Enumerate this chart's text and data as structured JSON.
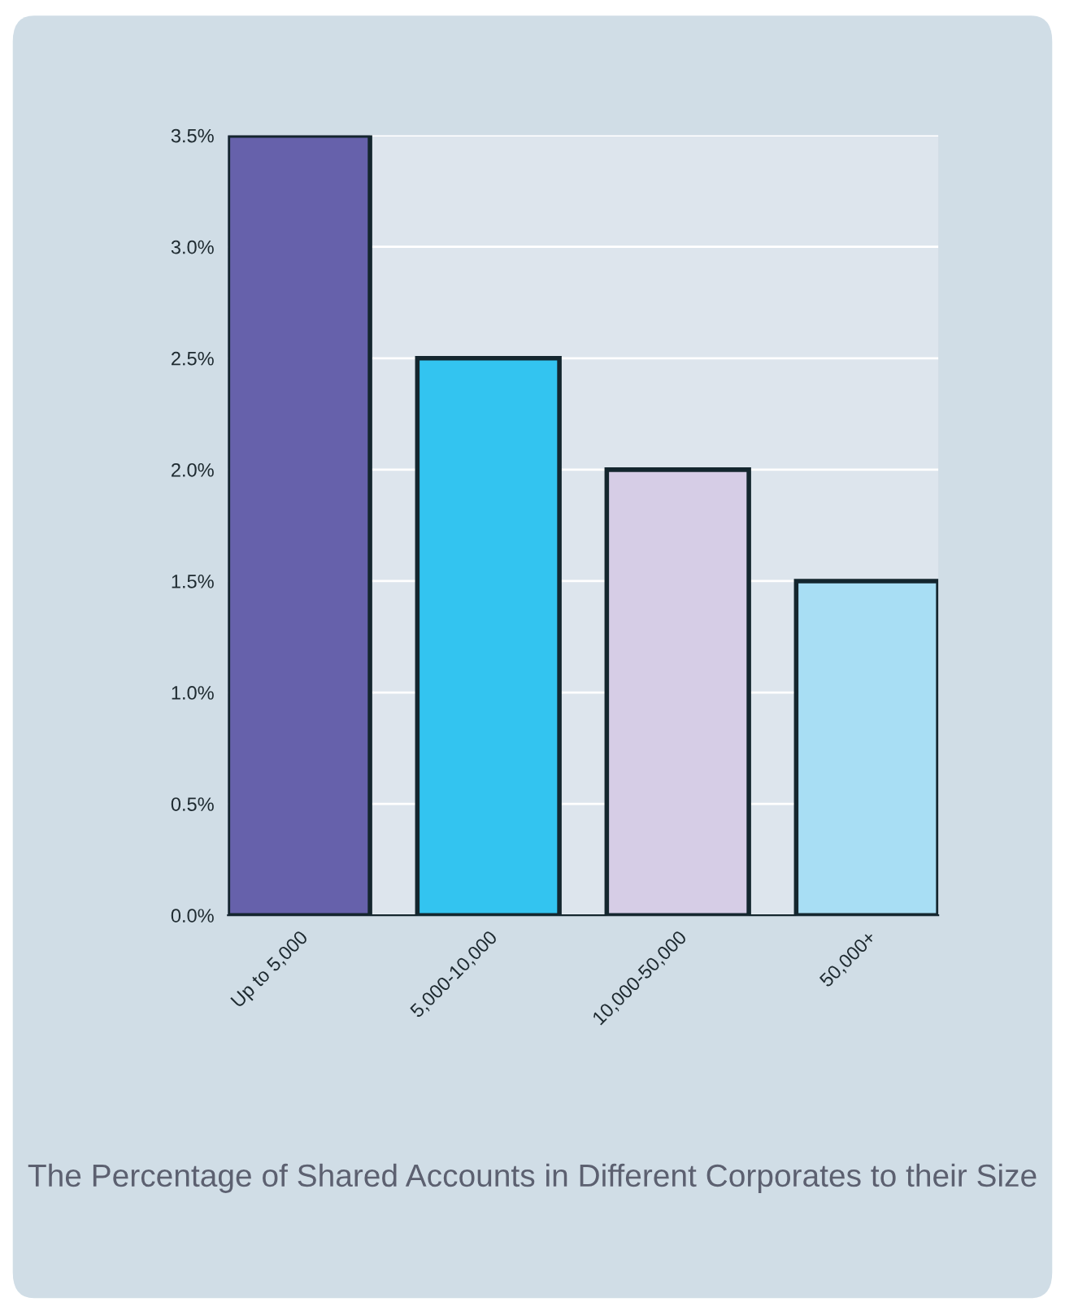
{
  "chart_data": {
    "type": "bar",
    "title": "The Percentage of Shared Accounts in Different Corporates to their Size",
    "categories": [
      "Up to 5,000",
      "5,000-10,000",
      "10,000-50,000",
      "50,000+"
    ],
    "values": [
      3.5,
      2.5,
      2.0,
      1.5
    ],
    "colors": [
      "#6661ab",
      "#33c4f0",
      "#d6cde6",
      "#a8def4"
    ],
    "ylim": [
      0,
      3.5
    ],
    "yticks": [
      {
        "value": 0,
        "label": "0.0%"
      },
      {
        "value": 0.5,
        "label": "0.5%"
      },
      {
        "value": 1,
        "label": "1.0%"
      },
      {
        "value": 1.5,
        "label": "1.5%"
      },
      {
        "value": 2,
        "label": "2.0%"
      },
      {
        "value": 2.5,
        "label": "2.5%"
      },
      {
        "value": 3,
        "label": "3.0%"
      },
      {
        "value": 3.5,
        "label": "3.5%"
      }
    ],
    "grid": "y",
    "legend": false
  }
}
